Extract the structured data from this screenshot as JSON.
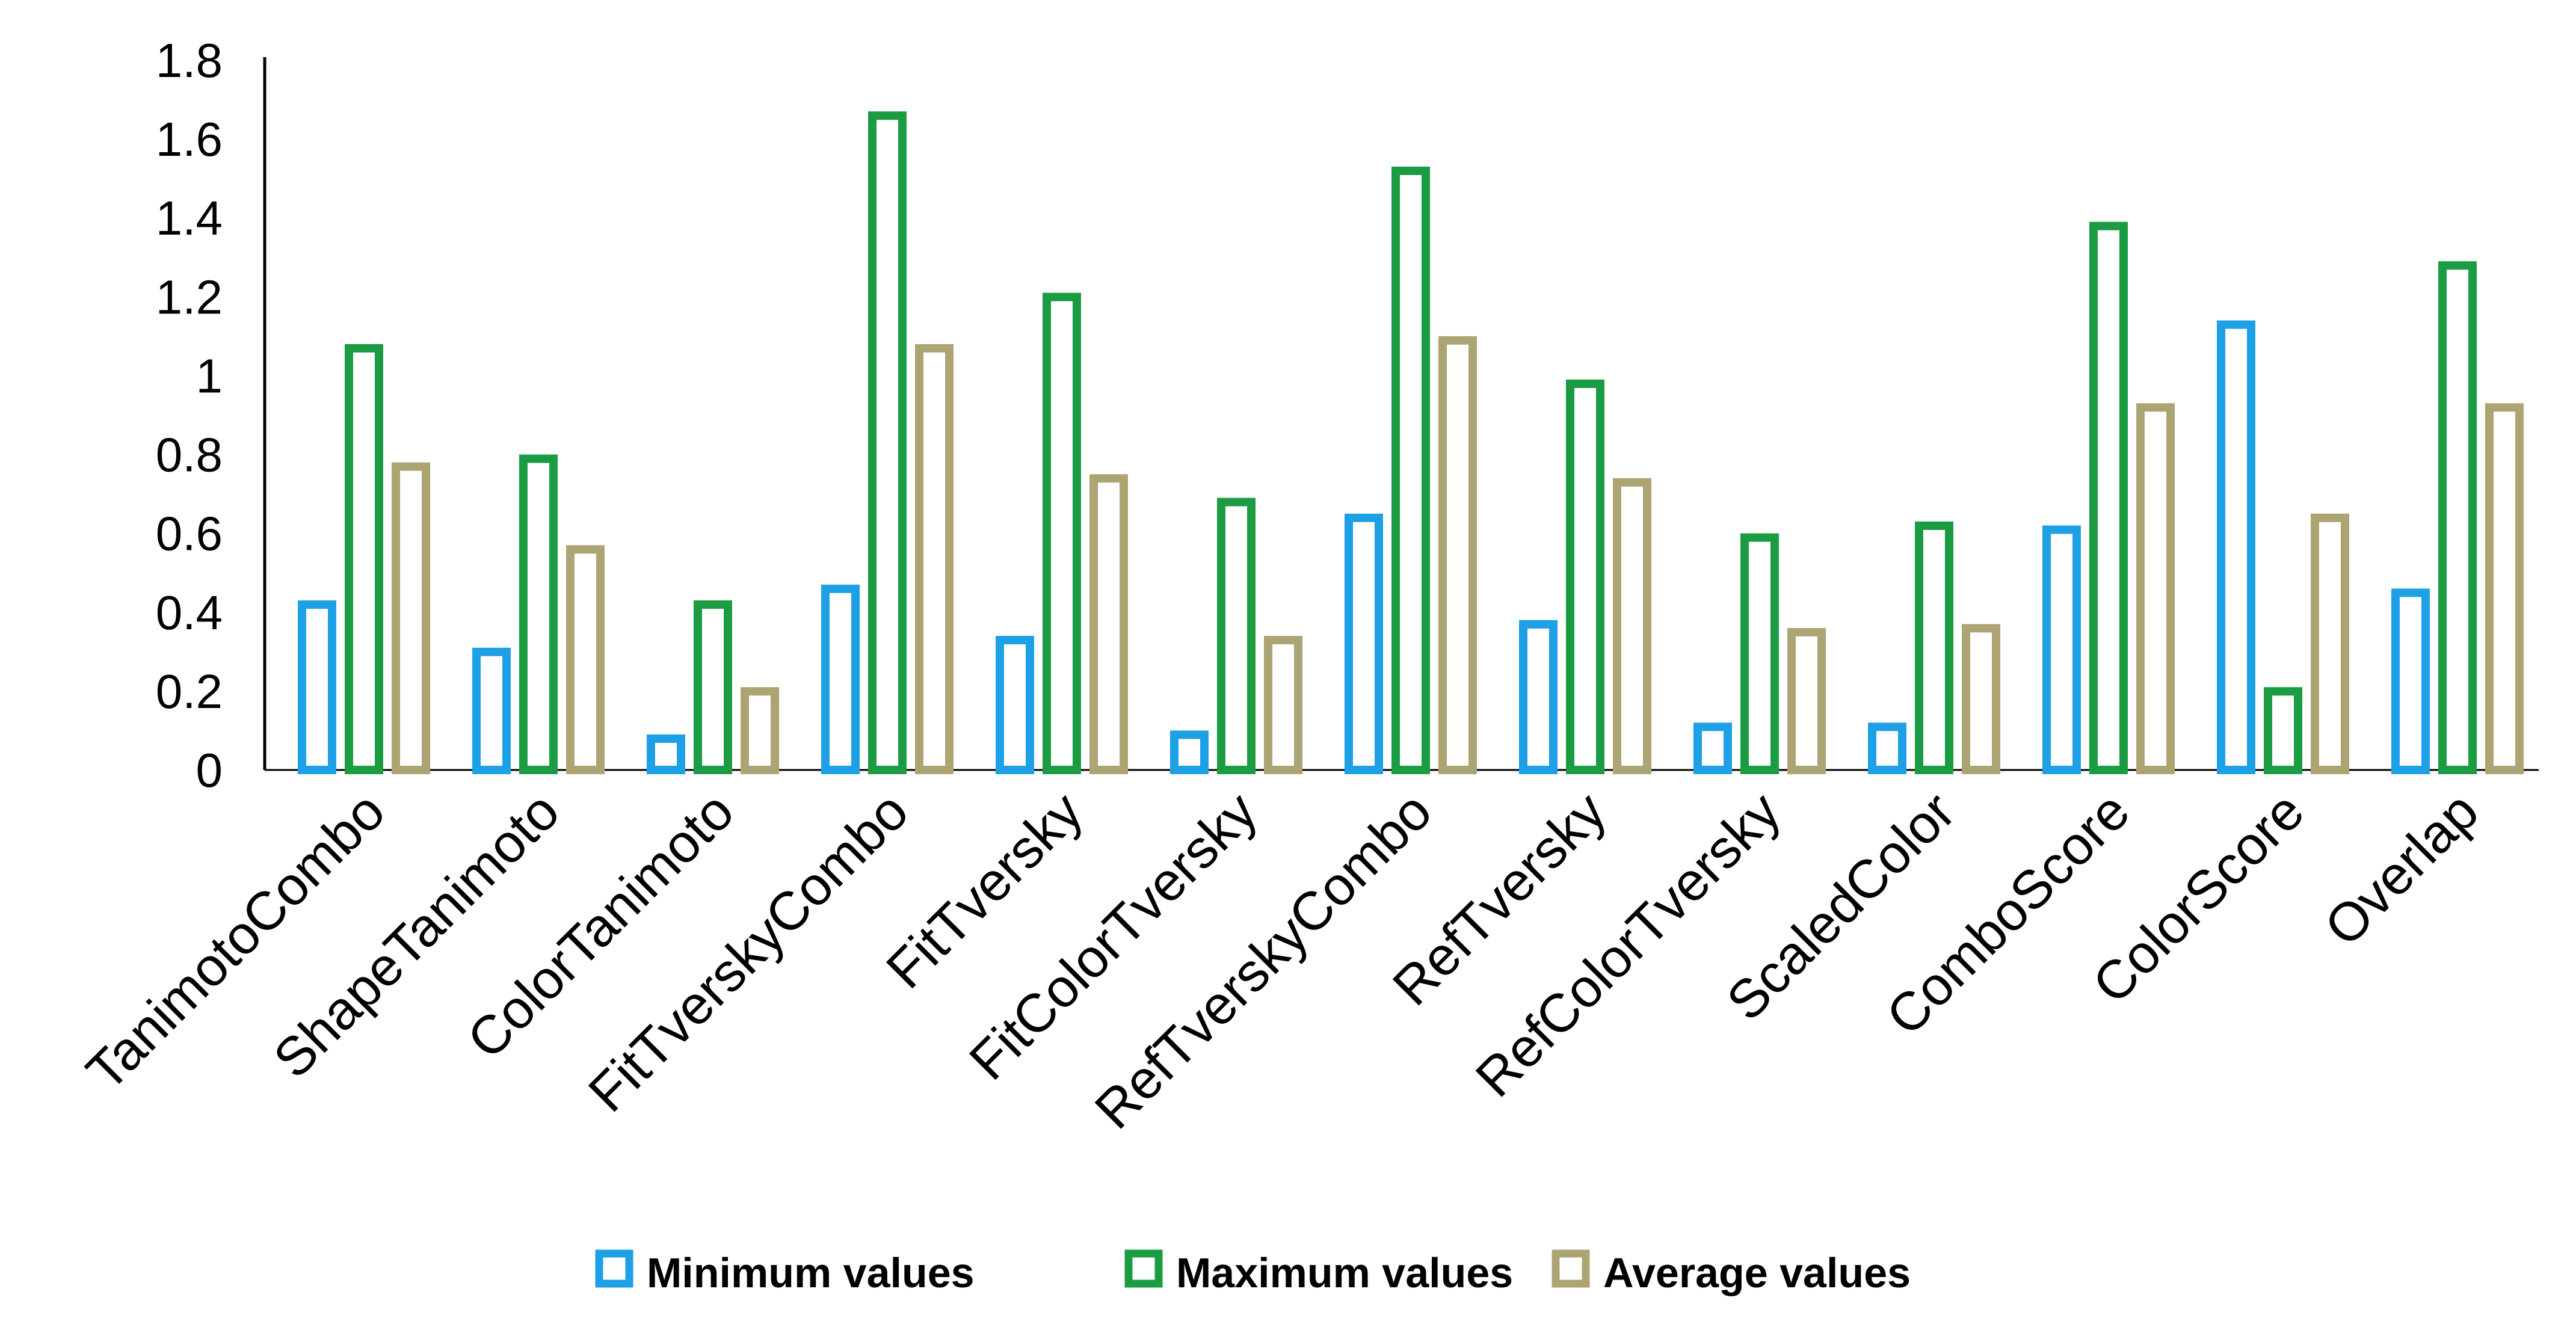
{
  "chart_data": {
    "type": "bar",
    "title": "",
    "xlabel": "",
    "ylabel": "",
    "ylim": [
      0,
      1.8
    ],
    "yticks": [
      0,
      0.2,
      0.4,
      0.6,
      0.8,
      1,
      1.2,
      1.4,
      1.6,
      1.8
    ],
    "ytick_labels": [
      "0",
      "0.2",
      "0.4",
      "0.6",
      "0.8",
      "1",
      "1.2",
      "1.4",
      "1.6",
      "1.8"
    ],
    "grid": false,
    "legend_position": "bottom",
    "categories": [
      "TanimotoCombo",
      "ShapeTanimoto",
      "ColorTanimoto",
      "FitTverskyCombo",
      "FitTversky",
      "FitColorTversky",
      "RefTverskyCombo",
      "RefTversky",
      "RefColorTversky",
      "ScaledColor",
      "ComboScore",
      "ColorScore",
      "Overlap"
    ],
    "series": [
      {
        "name": "Minimum values",
        "color": "#1EA0E6",
        "values": [
          0.43,
          0.31,
          0.09,
          0.47,
          0.34,
          0.1,
          0.65,
          0.38,
          0.12,
          0.12,
          0.62,
          1.14,
          0.46
        ]
      },
      {
        "name": "Maximum values",
        "color": "#1B9C43",
        "values": [
          1.08,
          0.8,
          0.43,
          1.67,
          1.21,
          0.69,
          1.53,
          0.99,
          0.6,
          0.63,
          1.39,
          0.21,
          1.29
        ]
      },
      {
        "name": "Average values",
        "color": "#ADA474",
        "values": [
          0.78,
          0.57,
          0.21,
          1.08,
          0.75,
          0.34,
          1.1,
          0.74,
          0.36,
          0.37,
          0.93,
          0.65,
          0.93
        ]
      }
    ]
  }
}
